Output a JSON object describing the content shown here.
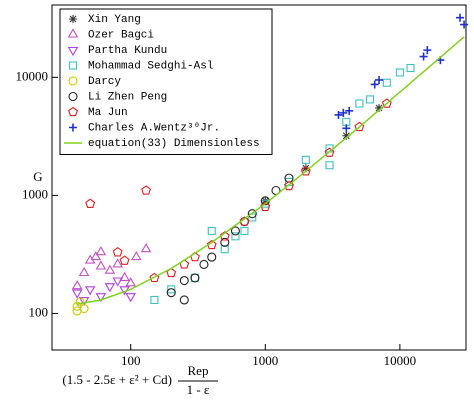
{
  "chart_data": {
    "type": "scatter",
    "y_label": "G",
    "x_label": {
      "left": "(1.5 - 2.5ε + ε² + Cd)",
      "numerator": "Rep",
      "denominator": "1 - ε"
    },
    "log_x": true,
    "log_y": true,
    "xlim": [
      26,
      31000
    ],
    "ylim": [
      49,
      41000
    ],
    "xticks": [
      100,
      1000,
      10000
    ],
    "yticks": [
      100,
      1000,
      10000
    ],
    "legend": "upper left",
    "series": [
      {
        "name": "Xin Yang",
        "marker": "asterisk",
        "color": "#333333",
        "x": [
          1000,
          2000,
          4000,
          7000
        ],
        "values": [
          900,
          1700,
          3200,
          5500
        ]
      },
      {
        "name": "Ozer Bagci",
        "marker": "triangle-up",
        "color": "#c050c0",
        "x": [
          40,
          45,
          50,
          55,
          60,
          70,
          80,
          90,
          100,
          110,
          130,
          60
        ],
        "values": [
          170,
          220,
          280,
          300,
          250,
          230,
          260,
          200,
          180,
          300,
          350,
          330
        ]
      },
      {
        "name": "Partha Kundu",
        "marker": "triangle-down",
        "color": "#b040e0",
        "x": [
          40,
          45,
          50,
          60,
          70,
          80,
          90,
          100
        ],
        "values": [
          150,
          130,
          160,
          140,
          170,
          190,
          160,
          140
        ]
      },
      {
        "name": "Mohammad Sedghi-Asl",
        "marker": "square",
        "color": "#40c0c0",
        "x": [
          150,
          200,
          300,
          400,
          500,
          600,
          700,
          800,
          1000,
          1500,
          2000,
          3000,
          3000,
          4000,
          5000,
          6000,
          8000,
          10000,
          12000
        ],
        "values": [
          130,
          160,
          200,
          500,
          350,
          450,
          500,
          650,
          850,
          1300,
          2000,
          2500,
          1800,
          4200,
          6000,
          6500,
          9000,
          11000,
          12000
        ]
      },
      {
        "name": "Darcy",
        "marker": "circle",
        "color": "#c8c800",
        "x": [
          40,
          40,
          42,
          45
        ],
        "values": [
          105,
          115,
          125,
          110
        ]
      },
      {
        "name": "Li Zhen Peng",
        "marker": "circle",
        "color": "#222222",
        "x": [
          200,
          250,
          250,
          300,
          350,
          400,
          500,
          600,
          700,
          800,
          1000,
          1200,
          1500
        ],
        "values": [
          150,
          130,
          190,
          200,
          260,
          300,
          400,
          500,
          600,
          700,
          900,
          1100,
          1400
        ]
      },
      {
        "name": "Ma Jun",
        "marker": "pentagon",
        "color": "#e02020",
        "x": [
          50,
          80,
          90,
          130,
          150,
          200,
          250,
          300,
          400,
          500,
          700,
          1000,
          1500,
          2000,
          3000,
          5000,
          8000
        ],
        "values": [
          850,
          330,
          280,
          1100,
          200,
          220,
          260,
          300,
          380,
          450,
          600,
          800,
          1200,
          1600,
          2300,
          3800,
          6000
        ]
      },
      {
        "name": "Charles A.Wentz³⁰Jr.",
        "marker": "plus",
        "color": "#2030d0",
        "x": [
          3500,
          3800,
          4000,
          4200,
          6500,
          7000,
          15000,
          16000,
          20000,
          28000,
          30000
        ],
        "values": [
          4800,
          5000,
          3700,
          5200,
          8700,
          9500,
          15000,
          17000,
          14000,
          32000,
          28000
        ]
      },
      {
        "name": "equation(33) Dimensionless",
        "marker": "line",
        "color": "#80d020",
        "x": [
          40,
          60,
          100,
          200,
          400,
          1000,
          2000,
          5000,
          10000,
          30000
        ],
        "values": [
          120,
          130,
          160,
          240,
          400,
          850,
          1600,
          3800,
          7500,
          22000
        ]
      }
    ]
  }
}
